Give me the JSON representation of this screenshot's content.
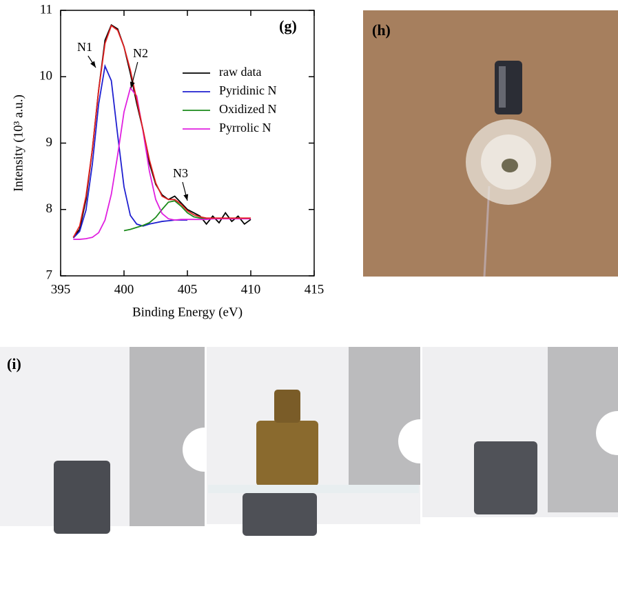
{
  "chart_data": {
    "type": "line",
    "panel_label": "(g)",
    "x_label": "Binding Energy (eV)",
    "y_label": "Intensity (10³ a.u.)",
    "x": [
      396,
      396.5,
      397,
      397.5,
      398,
      398.5,
      399,
      399.5,
      400,
      400.5,
      401,
      401.5,
      402,
      402.5,
      403,
      403.5,
      404,
      404.5,
      405,
      405.5,
      406,
      406.5,
      407,
      407.5,
      408,
      408.5,
      409,
      409.5,
      410
    ],
    "series": [
      {
        "name": "raw data",
        "color": "#000000",
        "values": [
          7.58,
          7.7,
          8.15,
          8.9,
          9.8,
          10.55,
          10.78,
          10.72,
          10.45,
          10.05,
          9.6,
          9.2,
          8.7,
          8.38,
          8.22,
          8.15,
          8.2,
          8.1,
          8.0,
          7.95,
          7.9,
          7.78,
          7.9,
          7.8,
          7.95,
          7.82,
          7.9,
          7.78,
          7.85
        ]
      },
      {
        "name": "Pyridinic N",
        "color": "#1f1fd0",
        "values": [
          7.57,
          7.67,
          7.99,
          8.68,
          9.59,
          10.16,
          9.94,
          9.12,
          8.34,
          7.91,
          7.78,
          7.75,
          7.78,
          7.8,
          7.82,
          7.83,
          7.84,
          7.84,
          7.84,
          null,
          null,
          null,
          null,
          null,
          null,
          null,
          null,
          null,
          null
        ]
      },
      {
        "name": "Oxidized N",
        "color": "#1a8a1a",
        "values": [
          null,
          null,
          null,
          null,
          null,
          null,
          null,
          null,
          7.68,
          7.7,
          7.73,
          7.76,
          7.8,
          7.88,
          8.0,
          8.11,
          8.13,
          8.05,
          7.95,
          7.89,
          7.87,
          7.86,
          7.86,
          null,
          null,
          null,
          null,
          null,
          null
        ]
      },
      {
        "name": "Pyrrolic N",
        "color": "#e020e0",
        "values": [
          7.55,
          7.55,
          7.56,
          7.58,
          7.65,
          7.84,
          8.23,
          8.82,
          9.47,
          9.83,
          9.71,
          9.18,
          8.58,
          8.15,
          7.94,
          7.86,
          7.84,
          7.85,
          7.85,
          7.85,
          7.85,
          7.85,
          7.86,
          7.86,
          7.86,
          7.86,
          7.86,
          7.86,
          7.86
        ]
      },
      {
        "color": "#e02020",
        "values": [
          7.58,
          7.75,
          8.2,
          8.9,
          9.8,
          10.5,
          10.77,
          10.7,
          10.45,
          10.1,
          9.65,
          9.2,
          8.75,
          8.4,
          8.2,
          8.15,
          8.15,
          8.08,
          7.98,
          7.92,
          7.89,
          7.87,
          7.87,
          7.87,
          7.87,
          7.87,
          7.87,
          7.87,
          7.87
        ]
      }
    ],
    "annotations": [
      "N1",
      "N2",
      "N3"
    ],
    "xlim": [
      395,
      415
    ],
    "xticks": [
      395,
      400,
      405,
      410,
      415
    ],
    "ylim": [
      7,
      11
    ],
    "yticks": [
      7,
      8,
      9,
      10,
      11
    ]
  },
  "panels": {
    "h": "(h)",
    "i": "(i)"
  }
}
